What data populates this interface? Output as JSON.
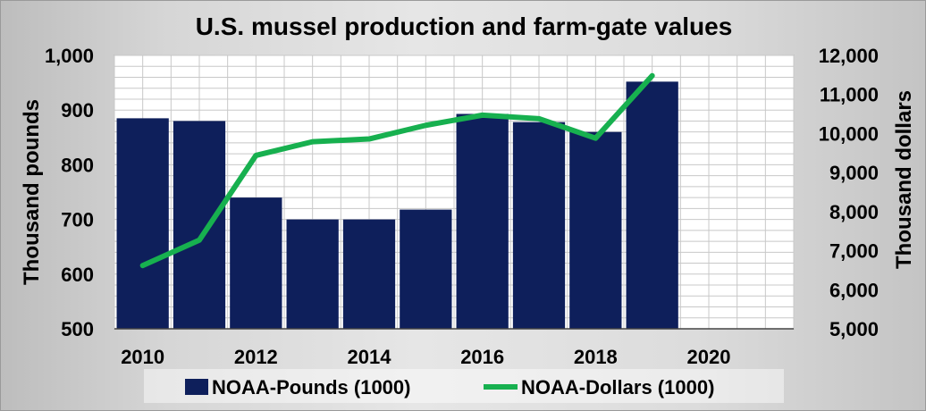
{
  "chart_data": {
    "type": "bar",
    "title": "U.S. mussel production and farm-gate values",
    "xlabel": "",
    "ylabel": "Thousand pounds",
    "y2label": "Thousand dollars",
    "x_tick_labels": [
      "2010",
      "2012",
      "2014",
      "2016",
      "2018",
      "2020"
    ],
    "y_tick_labels": [
      "500",
      "600",
      "700",
      "800",
      "900",
      "1,000"
    ],
    "y2_tick_labels": [
      "5,000",
      "6,000",
      "7,000",
      "8,000",
      "9,000",
      "10,000",
      "11,000",
      "12,000"
    ],
    "ylim": [
      500,
      1000
    ],
    "y2lim": [
      5000,
      12000
    ],
    "x": [
      2010,
      2011,
      2012,
      2013,
      2014,
      2015,
      2016,
      2017,
      2018,
      2019
    ],
    "x_range": [
      2009.5,
      2021.5
    ],
    "series": [
      {
        "name": "NOAA-Pounds (1000)",
        "type": "bar",
        "axis": "left",
        "color": "#0e1f5b",
        "values": [
          885,
          880,
          740,
          700,
          700,
          718,
          893,
          878,
          860,
          952
        ]
      },
      {
        "name": "NOAA-Dollars (1000)",
        "type": "line",
        "axis": "right",
        "color": "#17b04f",
        "values": [
          6620,
          7270,
          9440,
          9790,
          9860,
          10210,
          10470,
          10380,
          9880,
          11480
        ]
      }
    ],
    "grid": true,
    "legend_position": "bottom"
  }
}
